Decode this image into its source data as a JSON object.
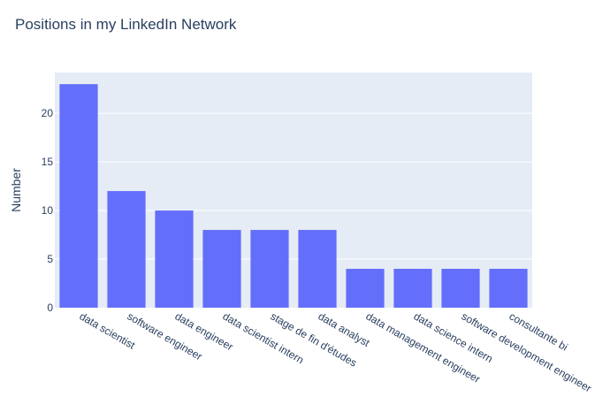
{
  "chart_data": {
    "type": "bar",
    "title": "Positions in my LinkedIn Network",
    "xlabel": "",
    "ylabel": "Number",
    "categories": [
      "data scientist",
      "software engineer",
      "data engineer",
      "data scientist intern",
      "stage de fin d'études",
      "data analyst",
      "data management engineer",
      "data science intern",
      "software development engineer",
      "consultante bi"
    ],
    "values": [
      23,
      12,
      10,
      8,
      8,
      8,
      4,
      4,
      4,
      4
    ],
    "ylim": [
      0,
      24.2
    ],
    "yticks": [
      0,
      5,
      10,
      15,
      20
    ],
    "grid": true,
    "legend": "none",
    "colors": {
      "bar": "#636efa",
      "plot_bg": "#e5ecf6",
      "grid": "#ffffff",
      "text": "#2a3f5f"
    }
  }
}
